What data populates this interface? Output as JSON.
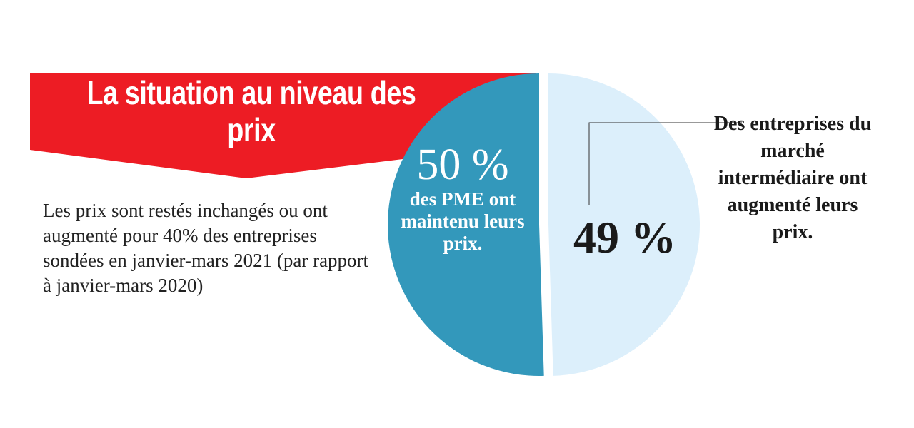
{
  "title": "La situation au niveau des prix",
  "description": "Les prix sont restés inchangés ou ont augmenté pour 40% des entreprises sondées en janvier-mars 2021 (par rapport à janvier-mars 2020)",
  "colors": {
    "banner": "#ed1c24",
    "slice_maintained": "#3398bb",
    "slice_increased": "#dceffb"
  },
  "chart_data": {
    "type": "pie",
    "slices": [
      {
        "label": "50 %",
        "value": 50,
        "caption": "des PME ont maintenu leurs prix.",
        "color": "#3398bb"
      },
      {
        "label": "49 %",
        "value": 49,
        "caption": "Des entreprises du marché intermédiaire ont augmenté leurs prix.",
        "color": "#dceffb"
      }
    ]
  }
}
